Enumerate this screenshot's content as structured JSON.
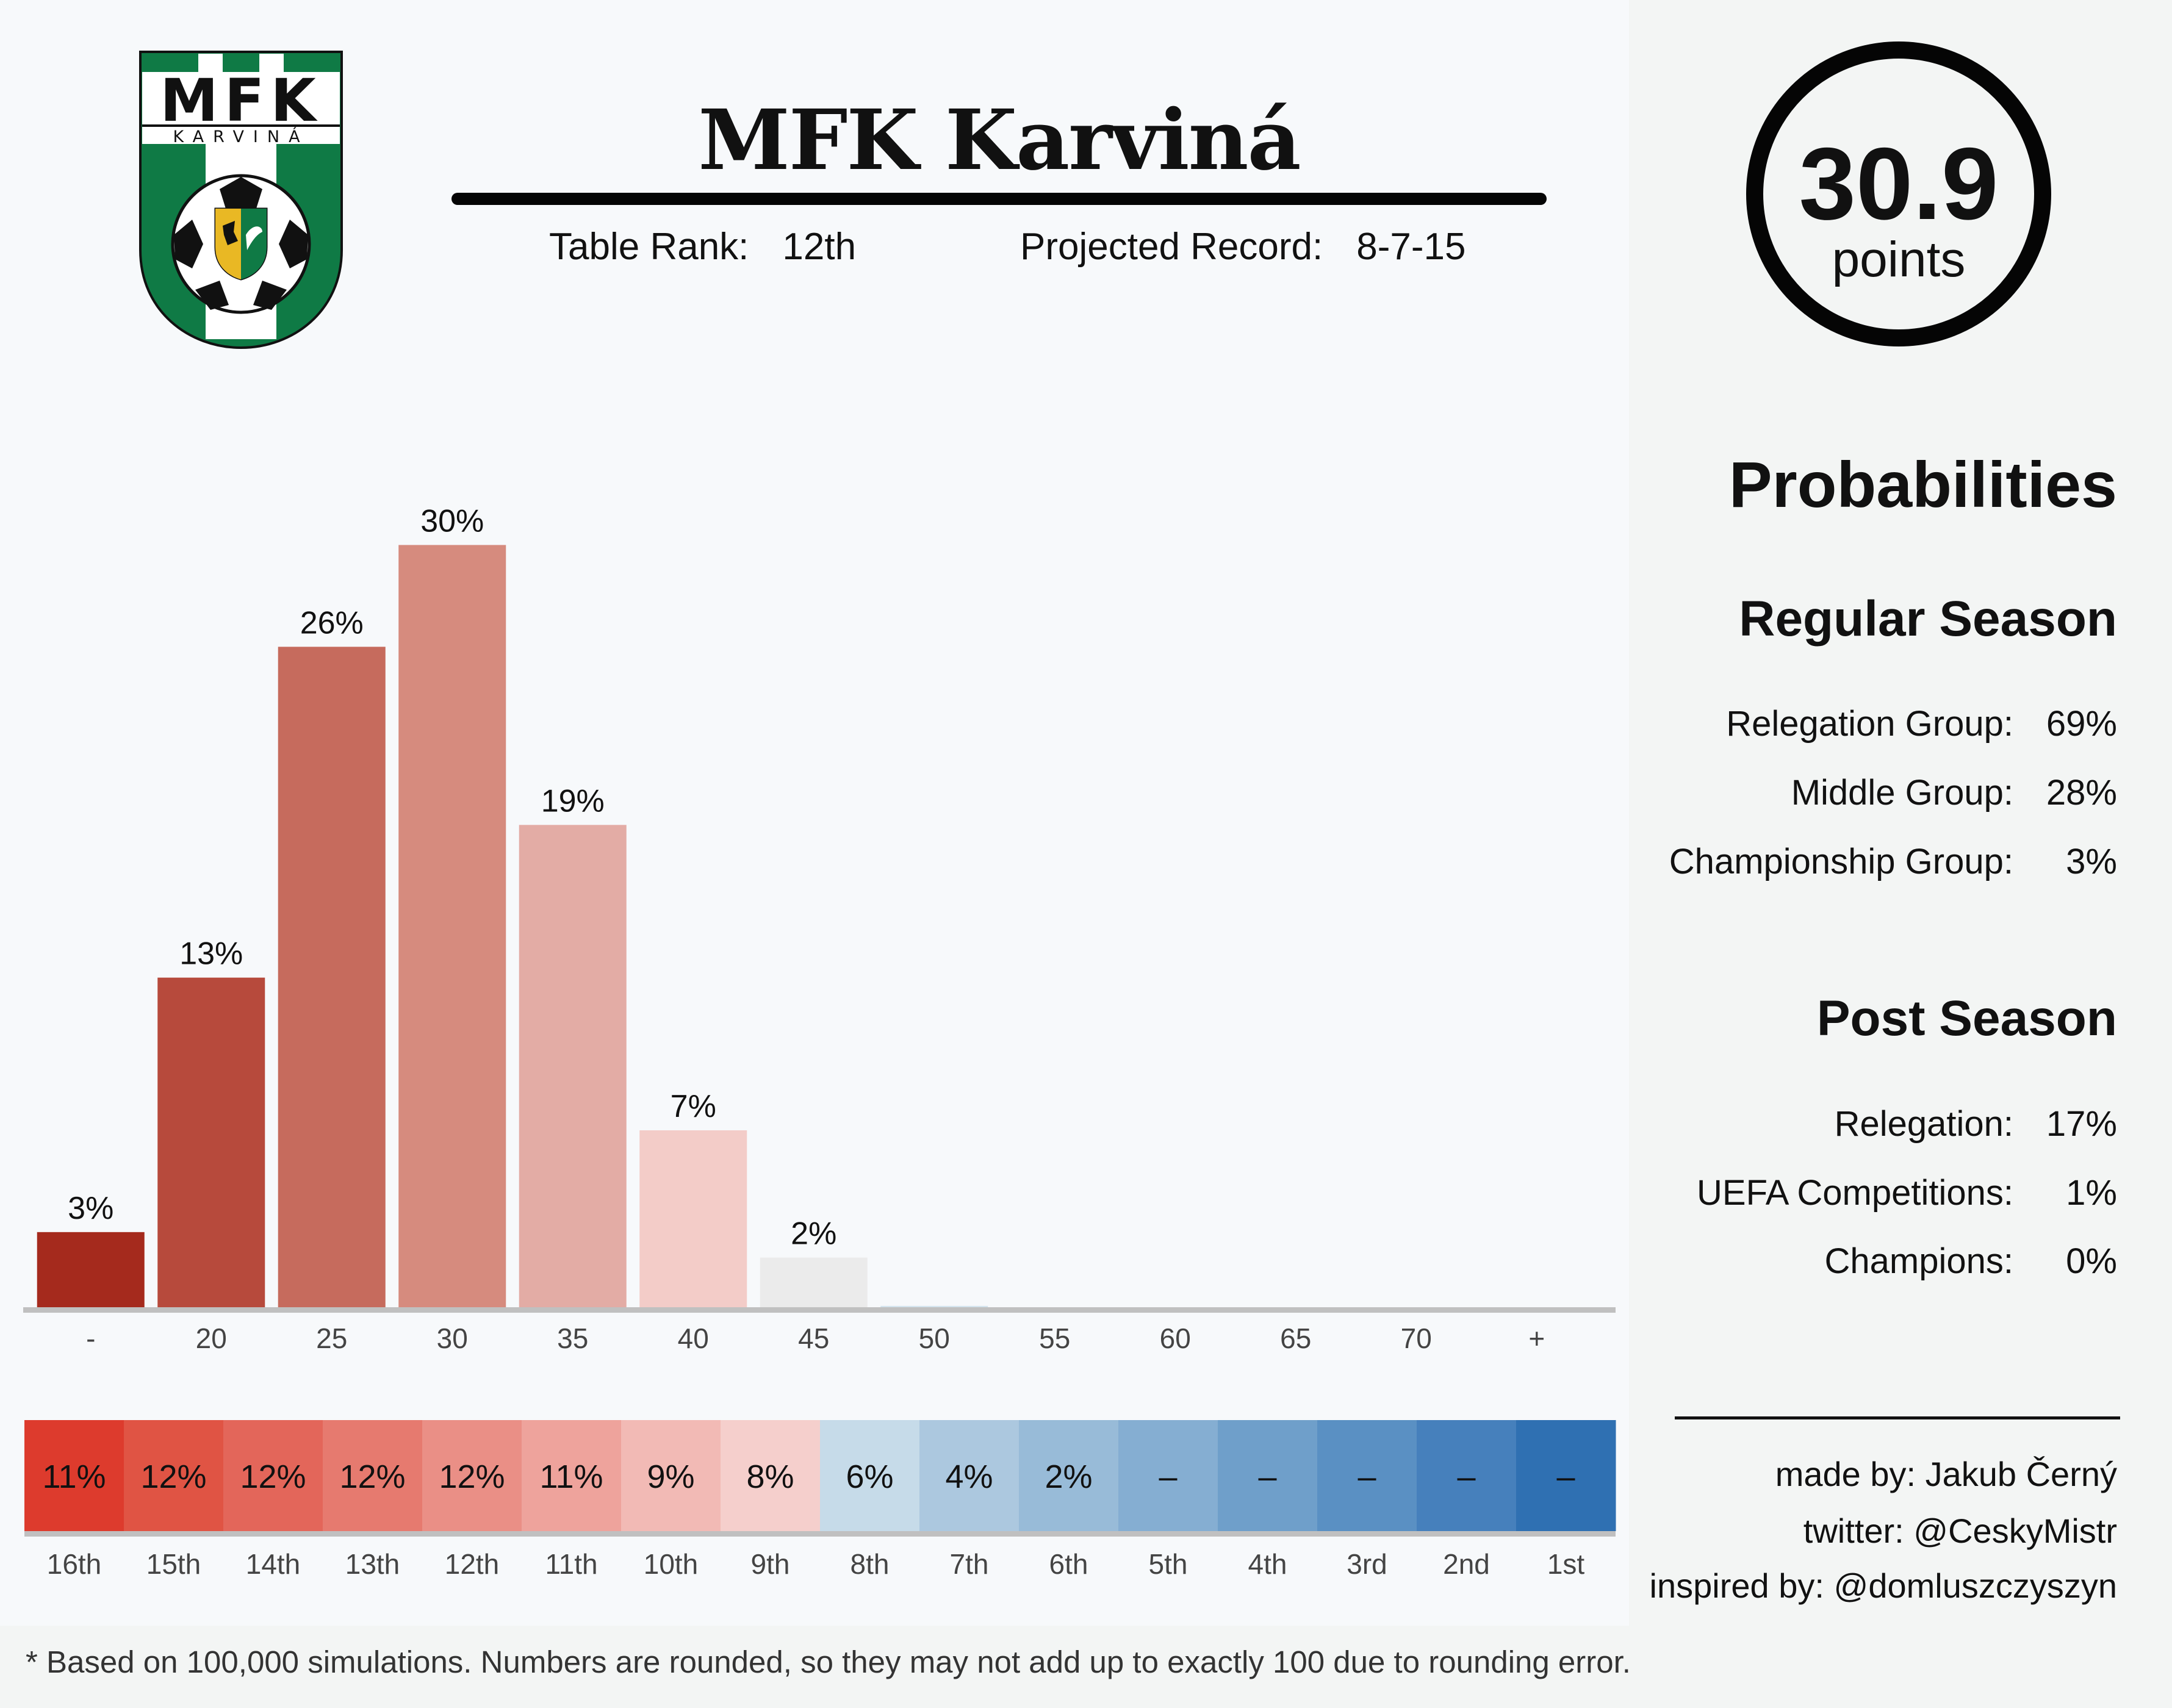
{
  "header": {
    "team_name": "MFK Karviná",
    "table_rank_label": "Table Rank:",
    "table_rank_value": "12th",
    "projected_record_label": "Projected Record:",
    "projected_record_value": "8-7-15"
  },
  "logo": {
    "top_text": "MFK",
    "sub_text": "KARVINÁ",
    "colors": {
      "green": "#0f7a45",
      "white": "#ffffff",
      "black": "#111111"
    }
  },
  "points": {
    "value": "30.9",
    "label": "points"
  },
  "probabilities": {
    "heading": "Probabilities",
    "regular_season": {
      "heading": "Regular Season",
      "rows": [
        {
          "label": "Relegation Group:",
          "value": "69%"
        },
        {
          "label": "Middle Group:",
          "value": "28%"
        },
        {
          "label": "Championship Group:",
          "value": "3%"
        }
      ]
    },
    "post_season": {
      "heading": "Post Season",
      "rows": [
        {
          "label": "Relegation:",
          "value": "17%"
        },
        {
          "label": "UEFA Competitions:",
          "value": "1%"
        },
        {
          "label": "Champions:",
          "value": "0%"
        }
      ]
    }
  },
  "credits": {
    "made_by": "made by: Jakub Černý",
    "twitter": "twitter: @CeskyMistr",
    "inspired_by": "inspired by: @domluszczyszyn"
  },
  "footnote": "* Based on 100,000 simulations. Numbers are rounded, so they may not add up to exactly 100 due to rounding error.",
  "chart_data": [
    {
      "type": "bar",
      "categories": [
        "-",
        "20",
        "25",
        "30",
        "35",
        "40",
        "45",
        "50",
        "55",
        "60",
        "65",
        "70",
        "+"
      ],
      "values": [
        3,
        13,
        26,
        30,
        19,
        7,
        2,
        0.1,
        0,
        0,
        0,
        0,
        0
      ],
      "data_labels": [
        "3%",
        "13%",
        "26%",
        "30%",
        "19%",
        "7%",
        "2%",
        "",
        "",
        "",
        "",
        "",
        ""
      ],
      "colors": [
        "#a52a1d",
        "#b74a3c",
        "#c66b5d",
        "#d68b7e",
        "#e3aca5",
        "#f3ccc8",
        "#ebebeb",
        "#d4e4ee",
        "#d4e4ee",
        "#d4e4ee",
        "#d4e4ee",
        "#d4e4ee",
        "#d4e4ee"
      ],
      "ylim": [
        0,
        32
      ],
      "grid": false,
      "baseline_color": "#c0c0c0"
    },
    {
      "type": "heatmap",
      "categories": [
        "16th",
        "15th",
        "14th",
        "13th",
        "12th",
        "11th",
        "10th",
        "9th",
        "8th",
        "7th",
        "6th",
        "5th",
        "4th",
        "3rd",
        "2nd",
        "1st"
      ],
      "labels": [
        "11%",
        "12%",
        "12%",
        "12%",
        "12%",
        "11%",
        "9%",
        "8%",
        "6%",
        "4%",
        "2%",
        "–",
        "–",
        "–",
        "–",
        "–"
      ],
      "values": [
        11,
        12,
        12,
        12,
        12,
        11,
        9,
        8,
        6,
        4,
        2,
        0,
        0,
        0,
        0,
        0
      ],
      "colors": [
        "#dd3b2d",
        "#e05444",
        "#e3665a",
        "#e67a6f",
        "#ea8f86",
        "#eea39c",
        "#f2bab5",
        "#f5cfcc",
        "#c6dbe9",
        "#acc8df",
        "#98bbd8",
        "#85aed2",
        "#6f9fca",
        "#5a90c3",
        "#4680bc",
        "#2f70b2"
      ]
    }
  ]
}
